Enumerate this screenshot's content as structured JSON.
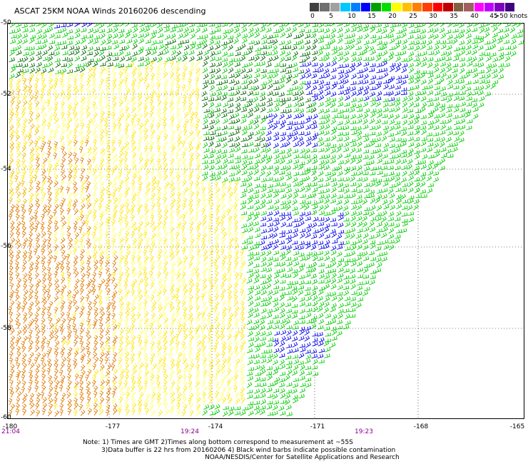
{
  "title": "ASCAT 25KM NOAA Winds 20160206 descending",
  "legend": {
    "colors": [
      "#404040",
      "#707070",
      "#a0a0a0",
      "#00c8ff",
      "#0080ff",
      "#0000ff",
      "#00a000",
      "#00e000",
      "#ffff00",
      "#ffc000",
      "#ff8000",
      "#ff4000",
      "#ff0000",
      "#c00000",
      "#806040",
      "#a06060",
      "#ff00ff",
      "#c000ff",
      "#8000c0",
      "#400080"
    ],
    "labels": [
      "0",
      "5",
      "10",
      "15",
      "20",
      "25",
      "30",
      "35",
      "40",
      "45",
      ">50 knots"
    ]
  },
  "map": {
    "lat_labels": [
      "-50",
      "-52",
      "-54",
      "-56",
      "-58",
      "-60"
    ],
    "lon_labels": [
      "-180",
      "-177",
      "-174",
      "-171",
      "-168",
      "-165"
    ],
    "time_labels": [
      "21:04",
      "19:24",
      "19:23"
    ],
    "lon_range": [
      -180,
      -165
    ],
    "lat_range": [
      -60,
      -50
    ],
    "barb_colors": {
      "blue": "#0000ee",
      "green": "#00cc00",
      "dark_green": "#006400",
      "yellow": "#ffe500",
      "light_yellow": "#ffff60",
      "orange": "#e07a00",
      "gold": "#f0b400"
    }
  },
  "notes": [
    "Note: 1) Times are GMT 2)Times along bottom correspond to measurement at ~55S",
    "3)Data buffer is 22 hrs from 20160206 4) Black wind barbs indicate possible contamination",
    "NOAA/NESDIS/Center for Satellite Applications and Research"
  ]
}
